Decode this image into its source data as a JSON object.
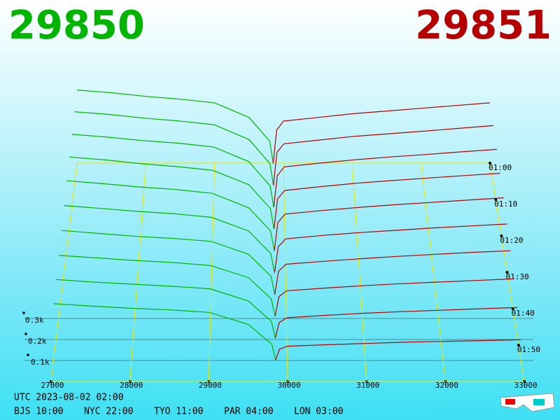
{
  "chart_data": {
    "type": "depth3d",
    "best_bid": 29850,
    "best_ask": 29851,
    "bid_color": "#00b400",
    "ask_color": "#b40000",
    "grid_color": "#e8e800",
    "xlim": [
      27000,
      33000
    ],
    "xticks": [
      27000,
      28000,
      29000,
      30000,
      31000,
      32000,
      33000
    ],
    "tlim": [
      60,
      120
    ],
    "tticks": [
      {
        "value": 60,
        "label": "01:00"
      },
      {
        "value": 70,
        "label": "01:10"
      },
      {
        "value": 80,
        "label": "01:20"
      },
      {
        "value": 90,
        "label": "01:30"
      },
      {
        "value": 100,
        "label": "01:40"
      },
      {
        "value": 110,
        "label": "01:50"
      }
    ],
    "zticks": [
      {
        "value": 100,
        "label": "0.1k"
      },
      {
        "value": 200,
        "label": "0.2k"
      },
      {
        "value": 300,
        "label": "0.3k"
      }
    ],
    "bid_prices": [
      27000,
      27500,
      28000,
      28500,
      29000,
      29500,
      29800,
      29850
    ],
    "ask_prices": [
      29851,
      29900,
      30000,
      30500,
      31000,
      31500,
      32000,
      32500,
      33000
    ],
    "snapshots": [
      {
        "time": 60,
        "bids": [
          400,
          385,
          365,
          350,
          330,
          250,
          120,
          0
        ],
        "asks": [
          0,
          180,
          230,
          250,
          270,
          285,
          300,
          315,
          330
        ]
      },
      {
        "time": 66,
        "bids": [
          395,
          380,
          360,
          345,
          325,
          245,
          115,
          0
        ],
        "asks": [
          0,
          175,
          222,
          242,
          262,
          276,
          290,
          305,
          320
        ]
      },
      {
        "time": 72,
        "bids": [
          385,
          370,
          352,
          338,
          318,
          240,
          110,
          0
        ],
        "asks": [
          0,
          165,
          212,
          232,
          250,
          265,
          278,
          292,
          305
        ]
      },
      {
        "time": 78,
        "bids": [
          375,
          360,
          340,
          325,
          305,
          230,
          105,
          0
        ],
        "asks": [
          0,
          155,
          200,
          220,
          238,
          252,
          265,
          278,
          290
        ]
      },
      {
        "time": 84,
        "bids": [
          360,
          345,
          328,
          315,
          295,
          220,
          100,
          0
        ],
        "asks": [
          0,
          145,
          188,
          206,
          222,
          236,
          248,
          260,
          272
        ]
      },
      {
        "time": 90,
        "bids": [
          340,
          325,
          310,
          298,
          280,
          210,
          95,
          0
        ],
        "asks": [
          0,
          130,
          170,
          188,
          202,
          214,
          226,
          236,
          246
        ]
      },
      {
        "time": 96,
        "bids": [
          320,
          305,
          290,
          280,
          265,
          200,
          90,
          0
        ],
        "asks": [
          0,
          115,
          150,
          165,
          178,
          190,
          200,
          210,
          218
        ]
      },
      {
        "time": 102,
        "bids": [
          300,
          288,
          275,
          265,
          250,
          190,
          85,
          0
        ],
        "asks": [
          0,
          95,
          125,
          138,
          150,
          160,
          168,
          176,
          184
        ]
      },
      {
        "time": 108,
        "bids": [
          285,
          272,
          262,
          252,
          240,
          180,
          80,
          0
        ],
        "asks": [
          0,
          75,
          98,
          110,
          120,
          128,
          135,
          142,
          148
        ]
      },
      {
        "time": 114,
        "bids": [
          270,
          258,
          248,
          240,
          228,
          170,
          75,
          0
        ],
        "asks": [
          0,
          50,
          65,
          72,
          78,
          84,
          88,
          92,
          96
        ]
      }
    ]
  },
  "footer": {
    "utc": "UTC 2023-08-02 02:00",
    "zones": [
      "BJS 10:00",
      "NYC 22:00",
      "TYO 11:00",
      "PAR 04:00",
      "LON 03:00"
    ]
  }
}
